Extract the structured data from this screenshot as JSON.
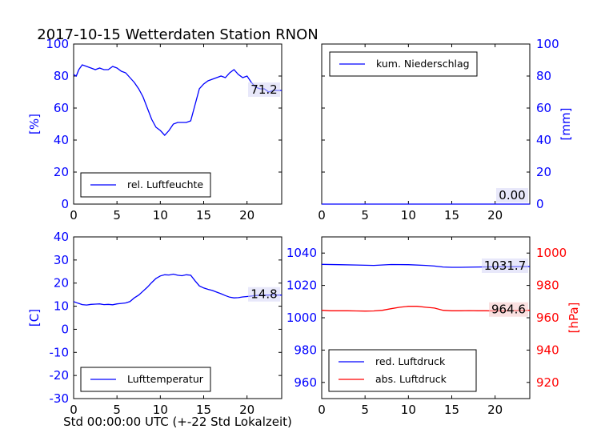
{
  "title": "2017-10-15 Wetterdaten Station RNON",
  "xlabel": "Std 00:00:00 UTC (+-22 Std Lokalzeit)",
  "colors": {
    "blue": "#0000ff",
    "red": "#ff0000",
    "black": "#000000"
  },
  "chart_data": [
    {
      "type": "line",
      "id": "humidity",
      "xlim": [
        0,
        24
      ],
      "ylim": [
        0,
        100
      ],
      "xticks": [
        0,
        5,
        10,
        15,
        20
      ],
      "yticks": [
        0,
        20,
        40,
        60,
        80,
        100
      ],
      "ylabel": "[%]",
      "legend_position": "lower-left",
      "annotation": "71.2",
      "series": [
        {
          "name": "rel. Luftfeuchte",
          "color": "#0000ff",
          "x": [
            0,
            0.3,
            0.6,
            1,
            1.5,
            2,
            2.5,
            3,
            3.5,
            4,
            4.5,
            5,
            5.5,
            6,
            6.5,
            7,
            7.5,
            8,
            8.5,
            9,
            9.5,
            10,
            10.5,
            11,
            11.5,
            12,
            12.5,
            13,
            13.5,
            14,
            14.5,
            15,
            15.5,
            16,
            16.5,
            17,
            17.5,
            18,
            18.5,
            19,
            19.5,
            20,
            20.5,
            21,
            21.5,
            22,
            22.5,
            23,
            23.5,
            24
          ],
          "y": [
            81,
            80,
            84,
            87,
            86,
            85,
            84,
            85,
            84,
            84,
            86,
            85,
            83,
            82,
            79,
            76,
            72,
            67,
            60,
            53,
            48,
            46,
            43,
            46,
            50,
            51,
            51,
            51,
            52,
            62,
            72,
            75,
            77,
            78,
            79,
            80,
            79,
            82,
            84,
            81,
            79,
            80,
            76,
            73,
            72,
            72,
            70,
            71,
            71,
            71
          ]
        }
      ]
    },
    {
      "type": "line",
      "id": "precipitation",
      "xlim": [
        0,
        24
      ],
      "ylim": [
        0,
        100
      ],
      "xticks": [
        0,
        5,
        10,
        15,
        20
      ],
      "yticks": [
        0,
        20,
        40,
        60,
        80,
        100
      ],
      "ylabel": "[mm]",
      "y_axis_side": "right",
      "legend_position": "top-left",
      "annotation": "0.00",
      "series": [
        {
          "name": "kum. Niederschlag",
          "color": "#0000ff",
          "x": [
            0,
            24
          ],
          "y": [
            0,
            0
          ]
        }
      ]
    },
    {
      "type": "line",
      "id": "temperature",
      "xlim": [
        0,
        24
      ],
      "ylim": [
        -30,
        40
      ],
      "xticks": [
        0,
        5,
        10,
        15,
        20
      ],
      "yticks": [
        -30,
        -20,
        -10,
        0,
        10,
        20,
        30,
        40
      ],
      "ylabel": "[C]",
      "legend_position": "lower-left",
      "annotation": "14.8",
      "series": [
        {
          "name": "Lufttemperatur",
          "color": "#0000ff",
          "x": [
            0,
            0.5,
            1,
            1.5,
            2,
            2.5,
            3,
            3.5,
            4,
            4.5,
            5,
            5.5,
            6,
            6.5,
            7,
            7.5,
            8,
            8.5,
            9,
            9.5,
            10,
            10.5,
            11,
            11.5,
            12,
            12.5,
            13,
            13.5,
            14,
            14.5,
            15,
            15.5,
            16,
            16.5,
            17,
            17.5,
            18,
            18.5,
            19,
            19.5,
            20,
            20.5,
            21,
            21.5,
            22,
            22.5,
            23,
            23.5,
            24
          ],
          "y": [
            12,
            11.3,
            10.7,
            10.5,
            10.8,
            10.9,
            11,
            10.7,
            10.8,
            10.6,
            11,
            11.2,
            11.4,
            12,
            13.6,
            14.8,
            16.5,
            18.2,
            20.2,
            22,
            23.1,
            23.6,
            23.5,
            23.9,
            23.4,
            23.2,
            23.6,
            23.4,
            21,
            18.8,
            17.9,
            17.3,
            16.8,
            16.1,
            15.4,
            14.6,
            13.9,
            13.6,
            13.7,
            14,
            14.2,
            14.4,
            14.6,
            14.7,
            14.8,
            14.8,
            14.9,
            14.8,
            14.8
          ]
        }
      ]
    },
    {
      "type": "line",
      "id": "pressure",
      "xlim": [
        0,
        24
      ],
      "ylim": [
        950,
        1050
      ],
      "xticks": [
        0,
        5,
        10,
        15,
        20
      ],
      "yticks": [
        960,
        980,
        1000,
        1020,
        1040
      ],
      "ylim_right": [
        910,
        1010
      ],
      "yticks_right": [
        920,
        940,
        960,
        980,
        1000
      ],
      "ylabel_right": "[hPa]",
      "legend_position": "lower-left",
      "annotations": [
        "1031.7",
        "964.6"
      ],
      "series": [
        {
          "name": "red. Luftdruck",
          "color": "#0000ff",
          "axis": "left",
          "x": [
            0,
            2,
            4,
            6,
            8,
            10,
            12,
            13,
            14,
            15,
            16,
            18,
            20,
            22,
            24
          ],
          "y": [
            1033,
            1032.8,
            1032.6,
            1032.4,
            1032.9,
            1032.8,
            1032.4,
            1032,
            1031.4,
            1031.2,
            1031.2,
            1031.4,
            1031.5,
            1031.6,
            1031.7
          ]
        },
        {
          "name": "abs. Luftdruck",
          "color": "#ff0000",
          "axis": "right",
          "x": [
            0,
            1,
            2,
            3,
            4,
            5,
            6,
            7,
            8,
            9,
            10,
            11,
            12,
            13,
            14,
            15,
            16,
            17,
            18,
            19,
            20,
            21,
            22,
            23,
            24
          ],
          "y": [
            964.6,
            964.3,
            964.3,
            964.3,
            964.2,
            964.1,
            964.2,
            964.6,
            965.6,
            966.5,
            967.1,
            967.1,
            966.5,
            966,
            964.6,
            964.3,
            964.3,
            964.4,
            964.3,
            964.3,
            964.2,
            964.2,
            964.4,
            964.5,
            964.6
          ]
        }
      ]
    }
  ]
}
